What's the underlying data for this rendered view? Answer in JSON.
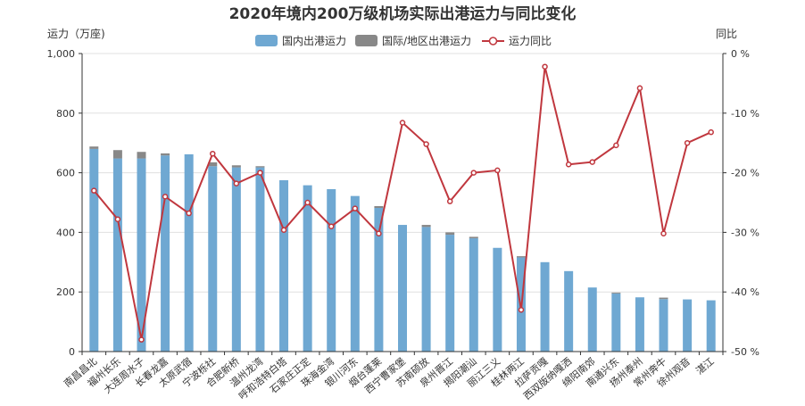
{
  "chart_data": {
    "type": "bar",
    "title": "2020年境内200万级机场实际出港运力与同比变化",
    "left_axis": {
      "label": "运力（万座)",
      "ylim": [
        0,
        1000
      ],
      "ticks": [
        0,
        200,
        400,
        600,
        800,
        1000
      ],
      "tick_labels": [
        "0",
        "200",
        "400",
        "600",
        "800",
        "1,000"
      ]
    },
    "right_axis": {
      "label": "同比",
      "ylim": [
        -50,
        0
      ],
      "ticks": [
        0,
        -10,
        -20,
        -30,
        -40,
        -50
      ],
      "tick_labels": [
        "0 %",
        "-10 %",
        "-20 %",
        "-30 %",
        "-40 %",
        "-50 %"
      ]
    },
    "legend": {
      "placement": "top-center",
      "items": [
        {
          "name": "国内出港运力",
          "color": "#6fa8d2"
        },
        {
          "name": "国际/地区出港运力",
          "color": "#888888"
        },
        {
          "name": "运力同比",
          "color": "#c0373e"
        }
      ]
    },
    "grid": true,
    "categories": [
      "南昌昌北",
      "福州长乐",
      "大连周水子",
      "长春龙嘉",
      "太原武宿",
      "宁波栎社",
      "合肥新桥",
      "温州龙湾",
      "呼和浩特白塔",
      "石家庄正定",
      "珠海金湾",
      "银川河东",
      "烟台蓬莱",
      "西宁曹家堡",
      "苏南硕放",
      "泉州晋江",
      "揭阳潮汕",
      "丽江三义",
      "桂林两江",
      "拉萨贡嘎",
      "西双版纳嘎洒",
      "绵阳南郊",
      "南通兴东",
      "扬州泰州",
      "常州奔牛",
      "徐州观音",
      "湛江"
    ],
    "series": [
      {
        "name": "国内出港运力",
        "type": "bar",
        "axis": "left",
        "color": "#6fa8d2",
        "values": [
          680,
          648,
          648,
          658,
          662,
          622,
          618,
          618,
          575,
          558,
          545,
          522,
          482,
          425,
          418,
          392,
          380,
          348,
          316,
          300,
          270,
          215,
          195,
          182,
          176,
          175,
          172
        ]
      },
      {
        "name": "国际/地区出港运力",
        "type": "bar",
        "axis": "left",
        "color": "#888888",
        "values": [
          8,
          28,
          22,
          7,
          0,
          13,
          7,
          4,
          0,
          0,
          0,
          0,
          6,
          0,
          7,
          8,
          5,
          0,
          4,
          0,
          0,
          0,
          3,
          0,
          5,
          0,
          0
        ]
      },
      {
        "name": "运力同比",
        "type": "line",
        "axis": "right",
        "color": "#c0373e",
        "values": [
          -23,
          -27.8,
          -48,
          -24,
          -26.8,
          -16.8,
          -21.8,
          -20,
          -29.6,
          -25,
          -29,
          -26,
          -30.2,
          -11.6,
          -15.2,
          -24.8,
          -20,
          -19.6,
          -43,
          -2.2,
          -18.6,
          -18.2,
          -15.4,
          -5.8,
          -30.2,
          -15,
          -13.2
        ]
      }
    ]
  }
}
